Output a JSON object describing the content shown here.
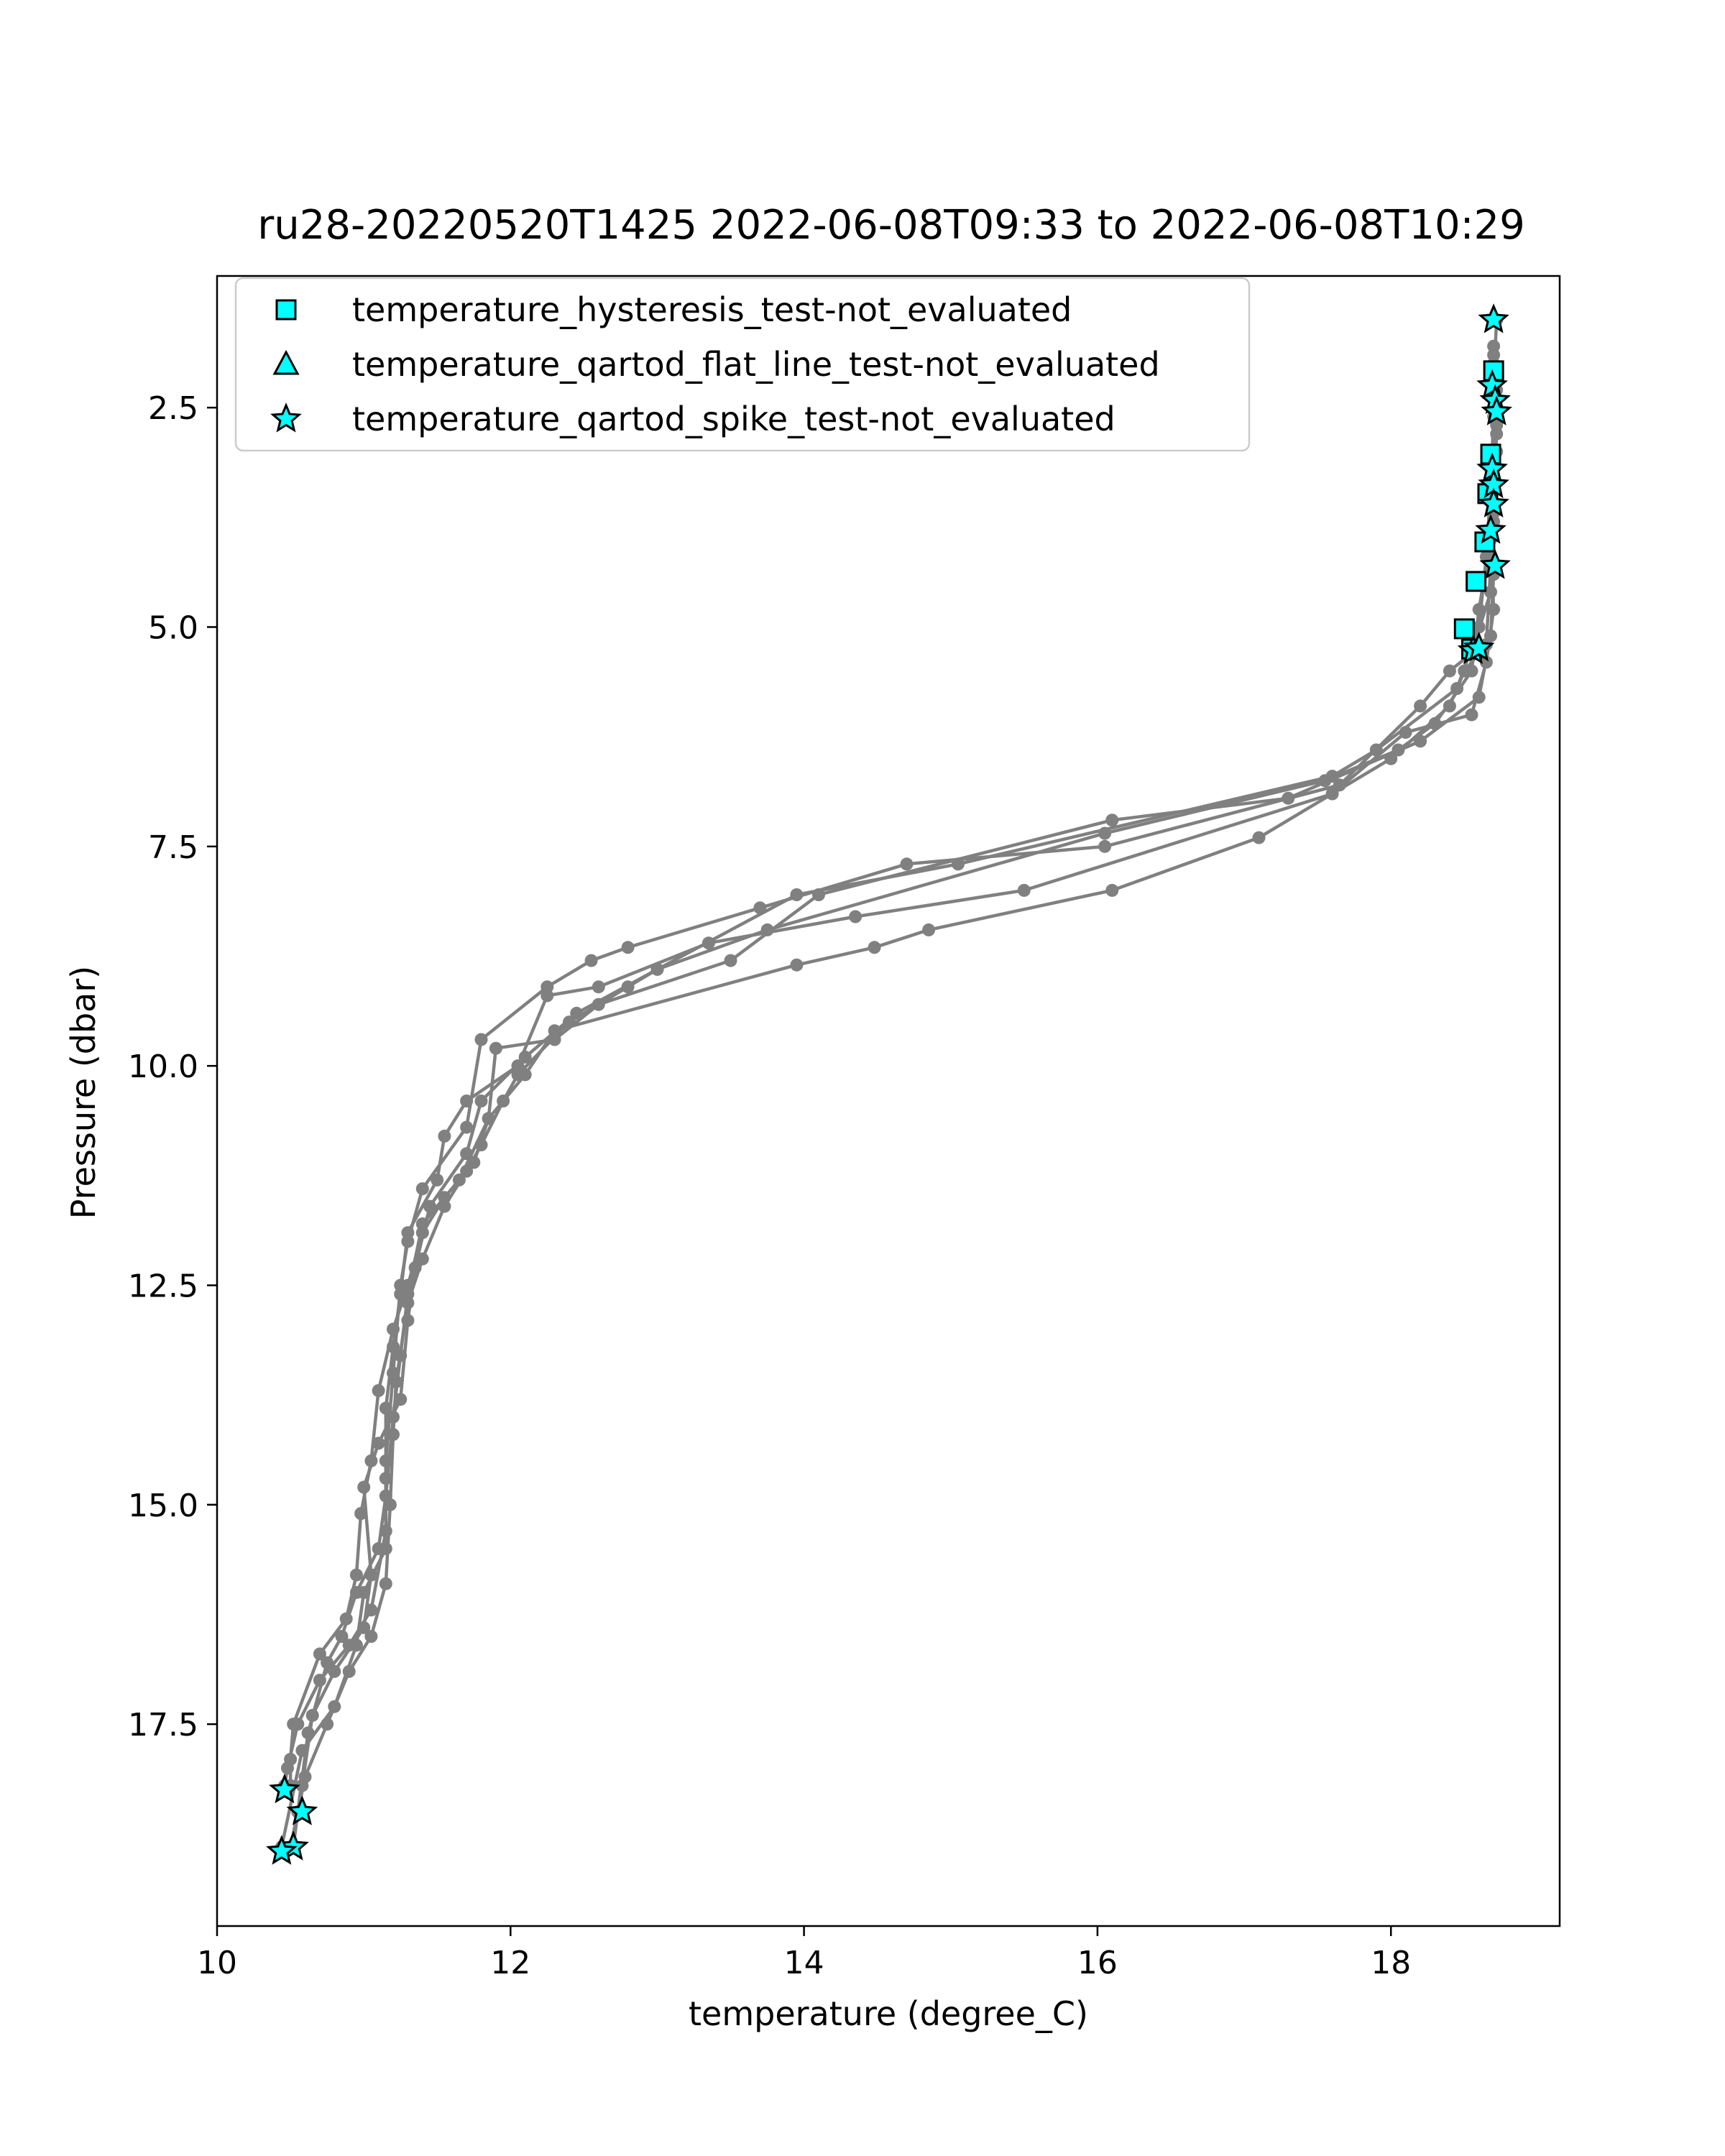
{
  "chart_data": {
    "type": "line",
    "title": "ru28-20220520T1425 2022-06-08T09:33 to 2022-06-08T10:29",
    "xlabel": "temperature (degree_C)",
    "ylabel": "Pressure (dbar)",
    "xlim": [
      10.0,
      19.15
    ],
    "ylim": [
      19.8,
      1.0
    ],
    "y_inverted": true,
    "x_ticks": [
      10,
      12,
      14,
      16,
      18
    ],
    "x_tick_labels": [
      "10",
      "12",
      "14",
      "16",
      "18"
    ],
    "y_ticks": [
      2.5,
      5.0,
      7.5,
      10.0,
      12.5,
      15.0,
      17.5
    ],
    "y_tick_labels": [
      "2.5",
      "5.0",
      "7.5",
      "10.0",
      "12.5",
      "15.0",
      "17.5"
    ],
    "grid": false,
    "legend_position": "top-left",
    "line_color": "#808080",
    "marker_color": "#00ffff",
    "profiles": [
      {
        "points": [
          [
            18.72,
            1.5
          ],
          [
            18.7,
            2.2
          ],
          [
            18.72,
            3.0
          ],
          [
            18.7,
            3.8
          ],
          [
            18.68,
            4.6
          ],
          [
            18.55,
            5.3
          ],
          [
            18.4,
            5.5
          ],
          [
            18.2,
            5.9
          ],
          [
            17.65,
            6.8
          ],
          [
            16.05,
            7.5
          ],
          [
            14.7,
            7.7
          ],
          [
            13.7,
            8.2
          ],
          [
            12.8,
            8.65
          ],
          [
            12.55,
            8.8
          ],
          [
            12.25,
            9.1
          ],
          [
            11.8,
            9.7
          ],
          [
            11.7,
            10.7
          ],
          [
            11.4,
            11.4
          ],
          [
            11.3,
            12.0
          ],
          [
            11.25,
            12.5
          ],
          [
            11.2,
            13.5
          ],
          [
            11.15,
            14.5
          ],
          [
            11.15,
            15.3
          ],
          [
            11.05,
            16.2
          ],
          [
            10.9,
            16.6
          ],
          [
            10.7,
            17.0
          ],
          [
            10.55,
            17.5
          ],
          [
            10.48,
            18.0
          ],
          [
            10.46,
            18.2
          ]
        ]
      },
      {
        "points": [
          [
            18.7,
            1.8
          ],
          [
            18.7,
            2.6
          ],
          [
            18.68,
            3.4
          ],
          [
            18.65,
            4.2
          ],
          [
            18.6,
            5.0
          ],
          [
            18.45,
            5.7
          ],
          [
            17.9,
            6.4
          ],
          [
            17.6,
            6.7
          ],
          [
            15.05,
            7.7
          ],
          [
            13.95,
            8.05
          ],
          [
            13.0,
            8.9
          ],
          [
            12.45,
            9.4
          ],
          [
            12.1,
            9.9
          ],
          [
            11.8,
            10.4
          ],
          [
            11.7,
            11.0
          ],
          [
            11.45,
            11.6
          ],
          [
            11.35,
            12.3
          ],
          [
            11.3,
            12.9
          ],
          [
            11.25,
            13.8
          ],
          [
            11.1,
            14.3
          ],
          [
            11.0,
            14.8
          ],
          [
            11.05,
            15.8
          ],
          [
            11.0,
            16.4
          ],
          [
            10.8,
            16.9
          ],
          [
            10.65,
            17.4
          ],
          [
            10.58,
            18.2
          ],
          [
            10.56,
            18.5
          ]
        ]
      },
      {
        "points": [
          [
            18.72,
            2.1
          ],
          [
            18.72,
            2.8
          ],
          [
            18.7,
            3.6
          ],
          [
            18.7,
            4.4
          ],
          [
            18.68,
            5.1
          ],
          [
            18.6,
            5.8
          ],
          [
            18.2,
            6.3
          ],
          [
            17.3,
            6.95
          ],
          [
            16.1,
            7.2
          ],
          [
            14.1,
            8.05
          ],
          [
            13.5,
            8.8
          ],
          [
            12.6,
            9.3
          ],
          [
            12.3,
            9.7
          ],
          [
            11.9,
            9.8
          ],
          [
            11.85,
            10.6
          ],
          [
            11.65,
            11.3
          ],
          [
            11.4,
            11.8
          ],
          [
            11.3,
            12.6
          ],
          [
            11.25,
            13.3
          ],
          [
            11.2,
            14.0
          ],
          [
            11.15,
            14.9
          ],
          [
            11.1,
            15.5
          ],
          [
            10.95,
            16.0
          ],
          [
            10.85,
            16.5
          ],
          [
            10.75,
            16.8
          ],
          [
            10.62,
            17.6
          ],
          [
            10.55,
            18.5
          ],
          [
            10.52,
            18.9
          ]
        ]
      },
      {
        "points": [
          [
            18.7,
            1.9
          ],
          [
            18.7,
            2.5
          ],
          [
            18.7,
            3.2
          ],
          [
            18.68,
            4.0
          ],
          [
            18.7,
            4.8
          ],
          [
            18.65,
            5.4
          ],
          [
            18.55,
            6.0
          ],
          [
            18.1,
            6.2
          ],
          [
            17.6,
            6.9
          ],
          [
            15.5,
            8.0
          ],
          [
            14.35,
            8.3
          ],
          [
            13.35,
            8.6
          ],
          [
            12.6,
            9.1
          ],
          [
            12.25,
            9.2
          ],
          [
            12.05,
            10.0
          ],
          [
            11.7,
            10.4
          ],
          [
            11.55,
            10.8
          ],
          [
            11.5,
            11.3
          ],
          [
            11.3,
            11.9
          ],
          [
            11.25,
            12.6
          ],
          [
            11.2,
            13.2
          ],
          [
            11.15,
            13.9
          ],
          [
            11.15,
            14.7
          ],
          [
            11.15,
            15.5
          ],
          [
            11.0,
            16.0
          ],
          [
            10.95,
            16.6
          ],
          [
            10.8,
            17.3
          ],
          [
            10.58,
            17.8
          ],
          [
            10.44,
            18.9
          ]
        ]
      },
      {
        "points": [
          [
            18.72,
            2.3
          ],
          [
            18.7,
            3.0
          ],
          [
            18.7,
            3.7
          ],
          [
            18.68,
            4.3
          ],
          [
            18.65,
            5.2
          ],
          [
            18.5,
            5.5
          ],
          [
            18.4,
            5.9
          ],
          [
            18.0,
            6.5
          ],
          [
            17.1,
            7.4
          ],
          [
            16.1,
            8.0
          ],
          [
            14.85,
            8.45
          ],
          [
            14.48,
            8.65
          ],
          [
            13.95,
            8.85
          ],
          [
            12.3,
            9.6
          ],
          [
            12.1,
            10.1
          ],
          [
            11.85,
            10.6
          ],
          [
            11.75,
            11.1
          ],
          [
            11.55,
            11.5
          ],
          [
            11.4,
            11.9
          ],
          [
            11.3,
            12.5
          ],
          [
            11.2,
            13.0
          ],
          [
            11.1,
            13.7
          ],
          [
            11.05,
            14.5
          ],
          [
            10.98,
            15.1
          ],
          [
            10.95,
            15.8
          ],
          [
            10.88,
            16.3
          ],
          [
            10.7,
            16.7
          ],
          [
            10.52,
            17.5
          ],
          [
            10.5,
            17.9
          ],
          [
            10.5,
            18.2
          ]
        ]
      },
      {
        "points": [
          [
            18.7,
            2.0
          ],
          [
            18.72,
            2.7
          ],
          [
            18.7,
            3.4
          ],
          [
            18.68,
            4.0
          ],
          [
            18.6,
            4.8
          ],
          [
            18.55,
            5.5
          ],
          [
            18.3,
            6.1
          ],
          [
            18.05,
            6.4
          ],
          [
            17.55,
            6.75
          ],
          [
            16.05,
            7.35
          ],
          [
            13.75,
            8.45
          ],
          [
            13.0,
            8.9
          ],
          [
            12.8,
            9.1
          ],
          [
            12.4,
            9.5
          ],
          [
            12.05,
            10.1
          ],
          [
            11.95,
            10.4
          ],
          [
            11.8,
            10.9
          ],
          [
            11.7,
            11.2
          ],
          [
            11.55,
            11.6
          ],
          [
            11.4,
            12.2
          ],
          [
            11.3,
            12.7
          ],
          [
            11.22,
            13.6
          ],
          [
            11.2,
            14.2
          ],
          [
            11.18,
            15.0
          ],
          [
            11.15,
            15.9
          ],
          [
            11.05,
            16.5
          ],
          [
            10.9,
            16.9
          ],
          [
            10.75,
            17.5
          ],
          [
            10.6,
            18.1
          ],
          [
            10.5,
            18.9
          ]
        ]
      }
    ],
    "marker_series": [
      {
        "name": "temperature_hysteresis_test-not_evaluated",
        "marker": "square",
        "points": [
          [
            18.7,
            2.08
          ],
          [
            18.68,
            3.03
          ],
          [
            18.66,
            3.48
          ],
          [
            18.64,
            4.03
          ],
          [
            18.58,
            4.48
          ],
          [
            18.5,
            5.02
          ],
          [
            18.55,
            5.25
          ]
        ]
      },
      {
        "name": "temperature_qartod_flat_line_test-not_evaluated",
        "marker": "triangle",
        "points": []
      },
      {
        "name": "temperature_qartod_spike_test-not_evaluated",
        "marker": "star",
        "points": [
          [
            18.7,
            1.5
          ],
          [
            18.69,
            2.25
          ],
          [
            18.71,
            2.42
          ],
          [
            18.72,
            2.55
          ],
          [
            18.69,
            3.2
          ],
          [
            18.7,
            3.38
          ],
          [
            18.7,
            3.6
          ],
          [
            18.68,
            3.9
          ],
          [
            18.71,
            4.3
          ],
          [
            18.56,
            5.27
          ],
          [
            18.6,
            5.24
          ],
          [
            10.46,
            18.25
          ],
          [
            10.58,
            18.5
          ],
          [
            10.52,
            18.9
          ],
          [
            10.44,
            18.95
          ]
        ]
      }
    ]
  }
}
